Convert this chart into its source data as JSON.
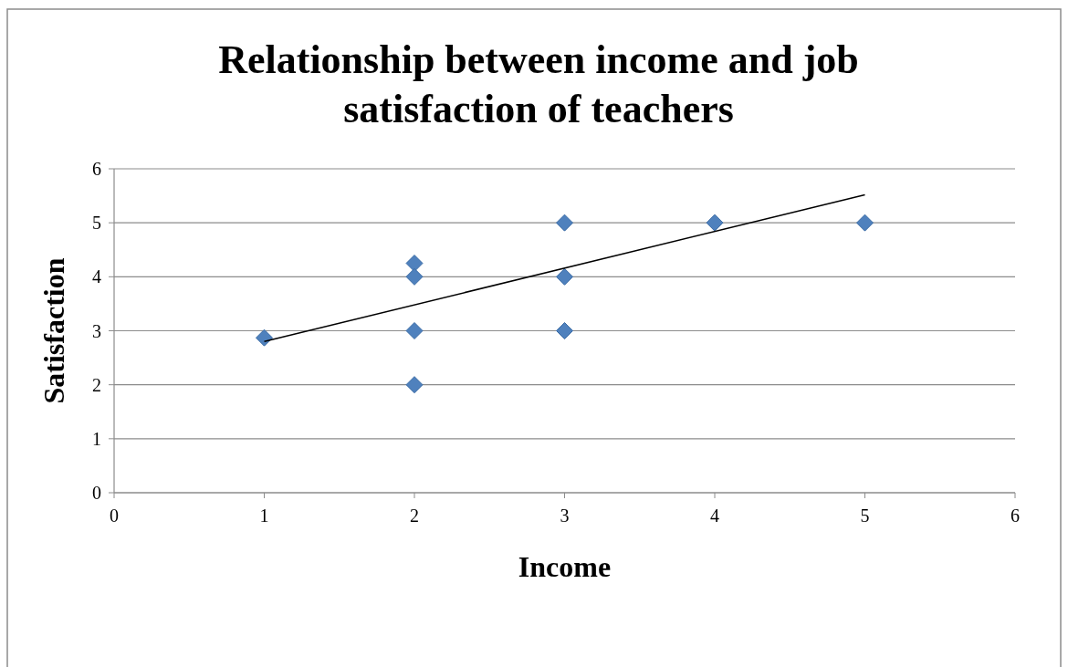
{
  "chart_data": {
    "type": "scatter",
    "title": "Relationship between income and job satisfaction of teachers",
    "xlabel": "Income",
    "ylabel": "Satisfaction",
    "xlim": [
      0,
      6
    ],
    "xticks": [
      0,
      1,
      2,
      3,
      4,
      5,
      6
    ],
    "ylim": [
      0,
      6
    ],
    "yticks": [
      0,
      1,
      2,
      3,
      4,
      5,
      6
    ],
    "grid": "y",
    "marker": "diamond",
    "series": [
      {
        "color": "#4f81bd",
        "x": [
          1,
          2,
          2,
          2,
          2,
          3,
          3,
          3,
          4,
          5
        ],
        "values": [
          2.87,
          4.25,
          4,
          3,
          2,
          5,
          4,
          3,
          5,
          5
        ]
      },
      {
        "type": "line",
        "color": "#000000",
        "marker": "none",
        "x": [
          1,
          5
        ],
        "values": [
          2.8,
          5.52
        ]
      }
    ]
  }
}
